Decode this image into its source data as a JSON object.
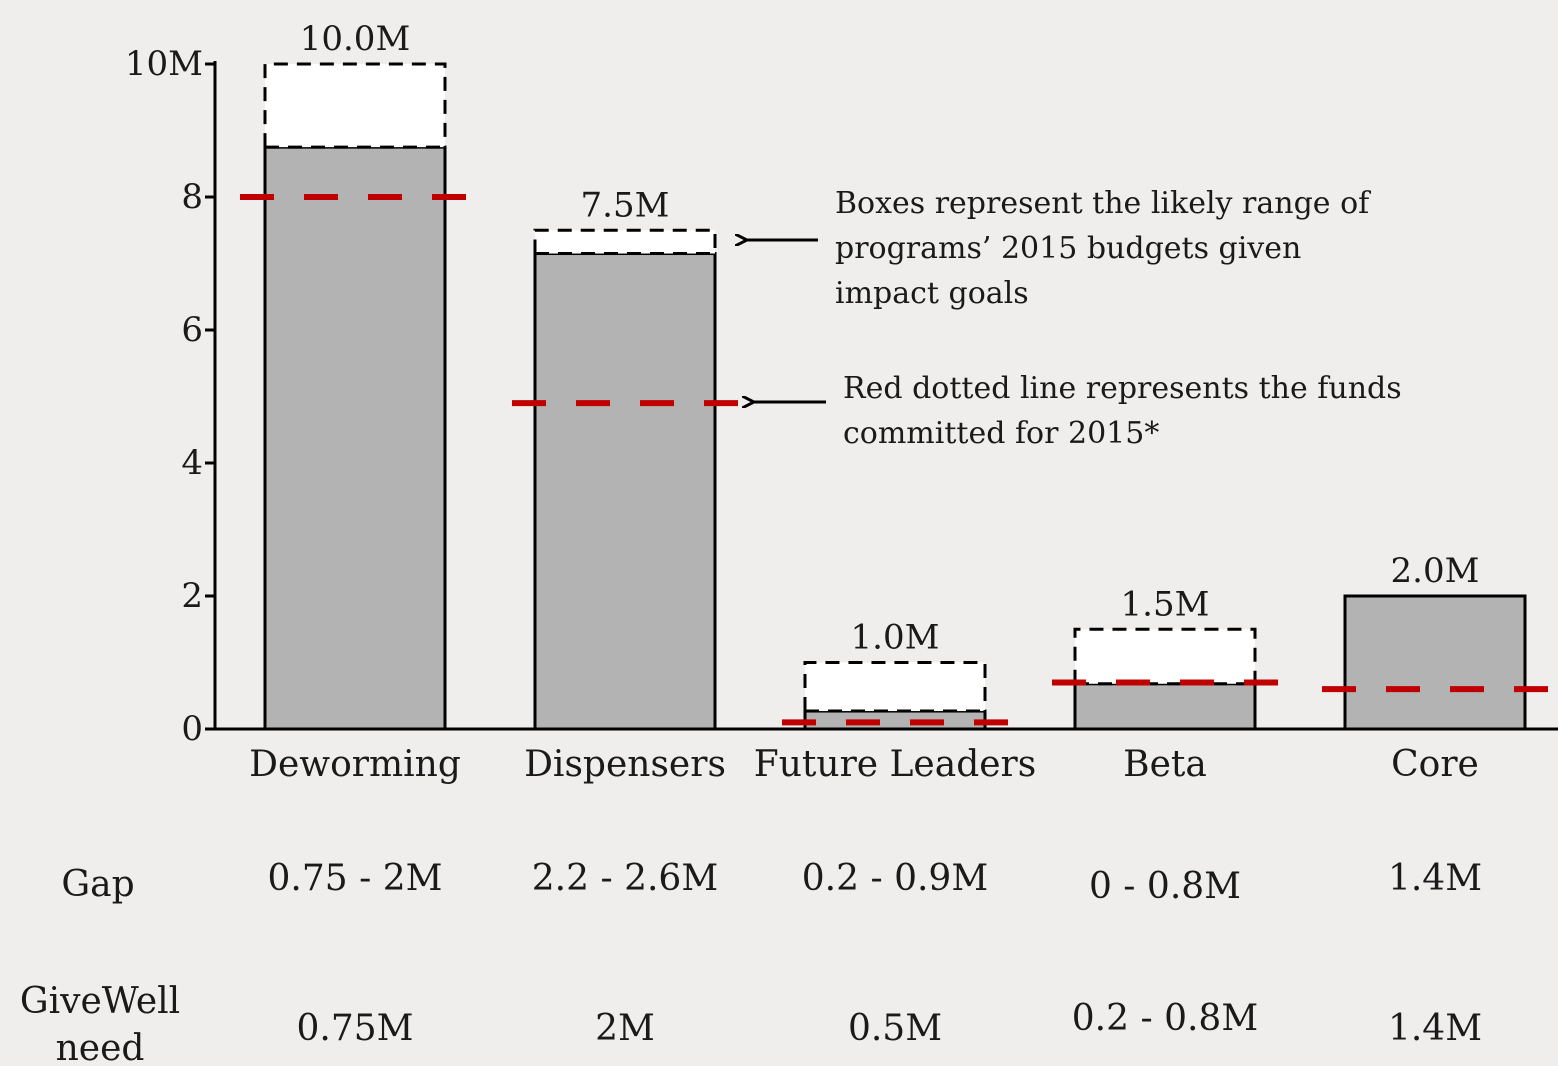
{
  "chart_data": {
    "type": "bar",
    "categories": [
      "Deworming",
      "Dispensers",
      "Future Leaders",
      "Beta",
      "Core"
    ],
    "budget_range": [
      {
        "low": 8.75,
        "high": 10.0
      },
      {
        "low": 7.15,
        "high": 7.5
      },
      {
        "low": 0.27,
        "high": 1.0
      },
      {
        "low": 0.68,
        "high": 1.5
      },
      {
        "low": 2.0,
        "high": 2.0
      }
    ],
    "top_labels": [
      "10.0M",
      "7.5M",
      "1.0M",
      "1.5M",
      "2.0M"
    ],
    "committed": [
      8.0,
      4.9,
      0.1,
      0.7,
      0.6
    ],
    "ylim": [
      0,
      10
    ],
    "yticks": [
      {
        "value": 0,
        "label": "0"
      },
      {
        "value": 2,
        "label": "2"
      },
      {
        "value": 4,
        "label": "4"
      },
      {
        "value": 6,
        "label": "6"
      },
      {
        "value": 8,
        "label": "8"
      },
      {
        "value": 10,
        "label": "10M"
      }
    ],
    "annotations": [
      {
        "lines": [
          "Boxes represent the likely range of",
          "programs’ 2015 budgets given",
          "impact goals"
        ],
        "points_to": "budget-box"
      },
      {
        "lines": [
          "Red dotted line represents the funds",
          "committed for 2015*"
        ],
        "points_to": "committed-line"
      }
    ],
    "colors": {
      "bar": "#b3b3b3",
      "committed": "#c00000",
      "box": "#ffffff",
      "background": "#efeeed"
    }
  },
  "table": {
    "rows": [
      {
        "label": "Gap",
        "values": [
          "0.75 - 2M",
          "2.2 - 2.6M",
          "0.2 - 0.9M",
          "0 - 0.8M",
          "1.4M"
        ]
      },
      {
        "label": [
          "GiveWell",
          "need"
        ],
        "values": [
          "0.75M",
          "2M",
          "0.5M",
          "0.2 - 0.8M",
          "1.4M"
        ]
      }
    ]
  }
}
